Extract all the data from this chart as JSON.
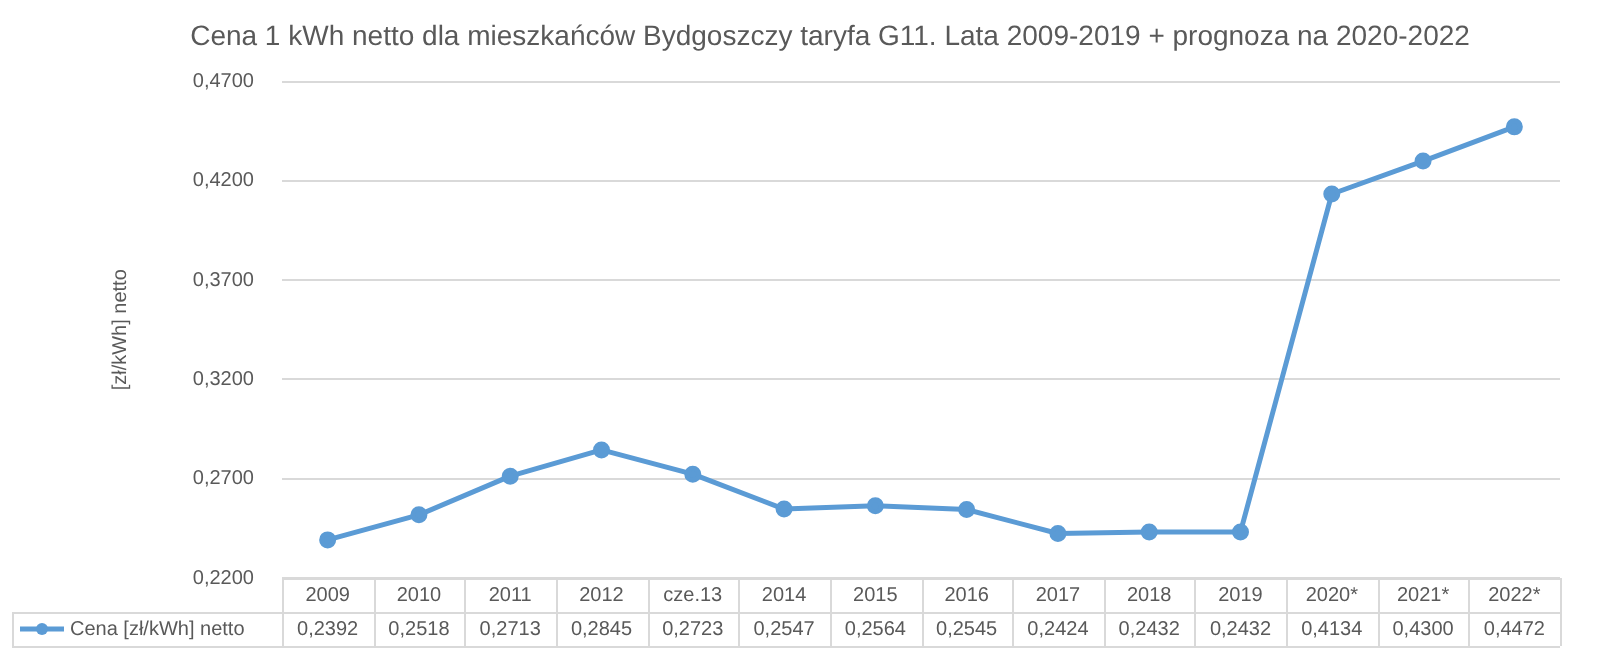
{
  "chart_data": {
    "type": "line",
    "title": "Cena 1 kWh netto dla mieszkańców Bydgoszczy taryfa G11. Lata 2009-2019 + prognoza na 2020-2022",
    "ylabel": "[zł/kWh] netto",
    "categories": [
      "2009",
      "2010",
      "2011",
      "2012",
      "cze.13",
      "2014",
      "2015",
      "2016",
      "2017",
      "2018",
      "2019",
      "2020*",
      "2021*",
      "2022*"
    ],
    "series": [
      {
        "name": "Cena [zł/kWh] netto",
        "color": "#5b9bd5",
        "values": [
          0.2392,
          0.2518,
          0.2713,
          0.2845,
          0.2723,
          0.2547,
          0.2564,
          0.2545,
          0.2424,
          0.2432,
          0.2432,
          0.4134,
          0.43,
          0.4472
        ],
        "value_labels": [
          "0,2392",
          "0,2518",
          "0,2713",
          "0,2845",
          "0,2723",
          "0,2547",
          "0,2564",
          "0,2545",
          "0,2424",
          "0,2432",
          "0,2432",
          "0,4134",
          "0,4300",
          "0,4472"
        ]
      }
    ],
    "ylim": [
      0.22,
      0.47
    ],
    "yticks": [
      {
        "value": 0.22,
        "label": "0,2200"
      },
      {
        "value": 0.27,
        "label": "0,2700"
      },
      {
        "value": 0.32,
        "label": "0,3200"
      },
      {
        "value": 0.37,
        "label": "0,3700"
      },
      {
        "value": 0.42,
        "label": "0,4200"
      },
      {
        "value": 0.47,
        "label": "0,4700"
      }
    ],
    "grid": "y",
    "legend": "bottom",
    "marker": "circle",
    "line_style": "solid"
  }
}
